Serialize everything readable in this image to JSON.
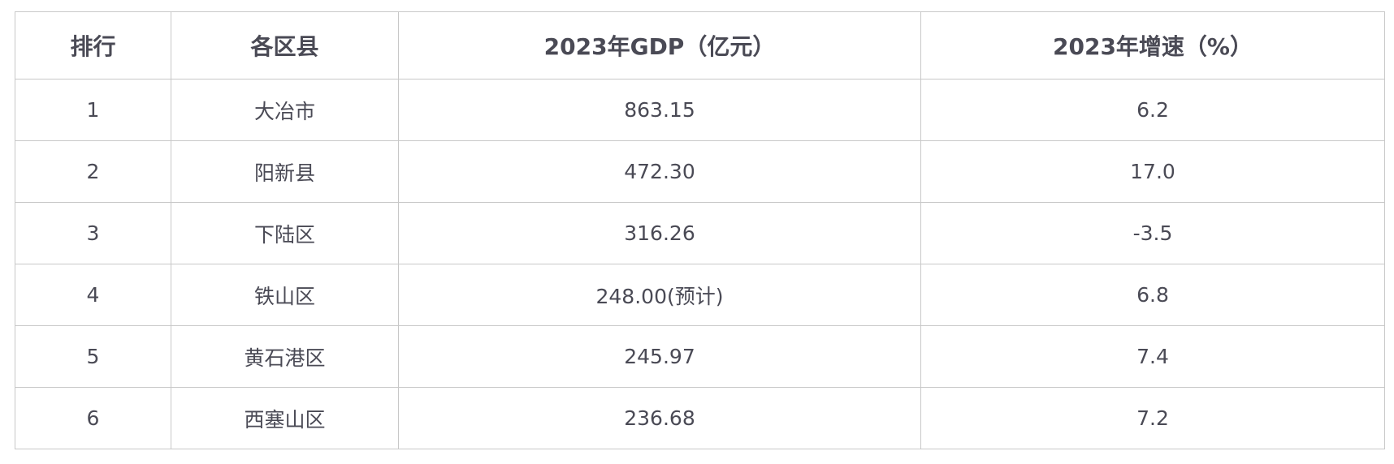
{
  "table": {
    "headers": [
      "排行",
      "各区县",
      "2023年GDP（亿元）",
      "2023年增速（%）"
    ],
    "rows": [
      [
        "1",
        "大冶市",
        "863.15",
        "6.2"
      ],
      [
        "2",
        "阳新县",
        "472.30",
        "17.0"
      ],
      [
        "3",
        "下陆区",
        "316.26",
        "-3.5"
      ],
      [
        "4",
        "铁山区",
        "248.00(预计)",
        "6.8"
      ],
      [
        "5",
        "黄石港区",
        "245.97",
        "7.4"
      ],
      [
        "6",
        "西塞山区",
        "236.68",
        "7.2"
      ]
    ]
  }
}
